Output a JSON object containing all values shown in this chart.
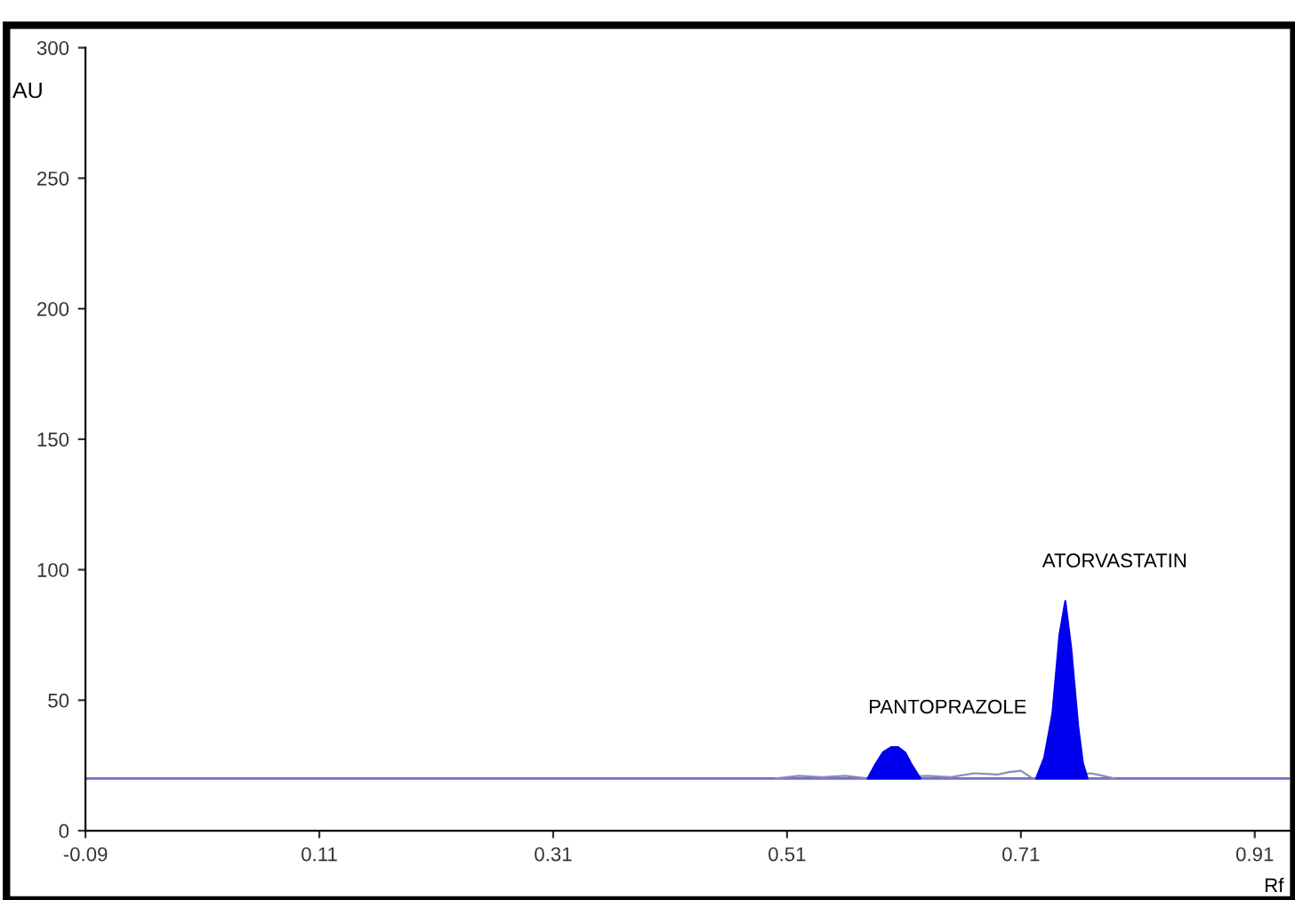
{
  "chart_data": {
    "type": "line",
    "xlabel": "Rf",
    "ylabel": "AU",
    "xlim": [
      -0.09,
      0.94
    ],
    "xticks": [
      -0.09,
      0.11,
      0.31,
      0.51,
      0.71,
      0.91
    ],
    "ylim": [
      0,
      300
    ],
    "yticks": [
      0,
      50,
      100,
      150,
      200,
      250,
      300
    ],
    "grid": false,
    "legend": false,
    "ref_lines": [
      {
        "axis": "y",
        "value": 20,
        "color": "#7070c0"
      }
    ],
    "series": [
      {
        "color": "#8a8ab8",
        "x": [
          0.5,
          0.52,
          0.54,
          0.56,
          0.58,
          0.63,
          0.65,
          0.67,
          0.69,
          0.7,
          0.71,
          0.72,
          0.77,
          0.78,
          0.79
        ],
        "values": [
          20,
          21,
          20.5,
          21,
          20,
          21,
          20.5,
          22,
          21.5,
          22.5,
          23,
          20,
          22,
          21,
          20
        ]
      },
      {
        "type": "area",
        "color": "#0000ee",
        "x": [
          0.579,
          0.585,
          0.592,
          0.599,
          0.605,
          0.611,
          0.617,
          0.624
        ],
        "values": [
          20,
          25,
          30,
          32,
          32,
          30,
          25,
          20
        ]
      },
      {
        "type": "area",
        "color": "#0000ee",
        "x": [
          0.723,
          0.73,
          0.737,
          0.743,
          0.748,
          0.753,
          0.759,
          0.763,
          0.767
        ],
        "values": [
          20,
          28,
          45,
          75,
          88,
          70,
          40,
          26,
          20
        ]
      }
    ],
    "annotations": [
      {
        "text": "PANTOPRAZOLE",
        "x": 0.605,
        "y": 32
      },
      {
        "text": "ATORVASTATIN",
        "x": 0.748,
        "y": 88
      }
    ]
  }
}
